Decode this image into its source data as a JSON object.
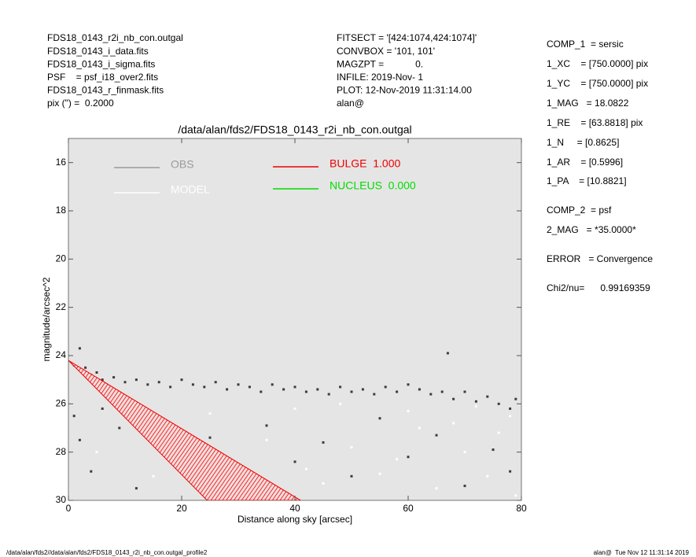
{
  "header": {
    "left": [
      "FDS18_0143_r2i_nb_con.outgal",
      "FDS18_0143_i_data.fits",
      "FDS18_0143_i_sigma.fits",
      "PSF    = psf_i18_over2.fits",
      "FDS18_0143_r_finmask.fits",
      "pix (\") =  0.2000"
    ],
    "middle": [
      "FITSECT = '[424:1074,424:1074]'",
      "CONVBOX = '101, 101'",
      "MAGZPT =            0.",
      "INFILE: 2019-Nov- 1",
      "PLOT: 12-Nov-2019 11:31:14.00",
      "alan@"
    ]
  },
  "params": [
    "COMP_1  = sersic",
    "1_XC    = [750.0000] pix",
    "1_YC    = [750.0000] pix",
    "1_MAG   = 18.0822",
    "1_RE    = [63.8818] pix",
    "1_N     = [0.8625]",
    "1_AR    = [0.5996]",
    "1_PA    = [10.8821]",
    "COMP_2  = psf",
    "2_MAG   = *35.0000*",
    "ERROR   = Convergence",
    "Chi2/nu=      0.99169359"
  ],
  "footer": {
    "left": "/data/alan/fds2//data/alan/fds2/FDS18_0143_r2i_nb_con.outgal_profile2",
    "right": "alan@  Tue Nov 12 11:31:14 2019"
  },
  "chart_data": {
    "type": "scatter",
    "title": "/data/alan/fds2/FDS18_0143_r2i_nb_con.outgal",
    "xlabel": "Distance along sky [arcsec]",
    "ylabel": "magnitude/arcsec^2",
    "xlim": [
      0,
      80
    ],
    "ylim": [
      30,
      15
    ],
    "xticks": [
      0,
      20,
      40,
      60,
      80
    ],
    "yticks": [
      16,
      18,
      20,
      22,
      24,
      26,
      28,
      30
    ],
    "series": [
      {
        "name": "OBS",
        "color": "#3c3c3c",
        "legend_color": "#9a9a9a",
        "x": [
          1,
          2,
          3,
          4,
          5,
          6,
          8,
          10,
          12,
          14,
          16,
          18,
          20,
          22,
          24,
          26,
          28,
          30,
          32,
          34,
          36,
          38,
          40,
          42,
          44,
          46,
          48,
          50,
          52,
          54,
          56,
          58,
          60,
          62,
          64,
          66,
          68,
          70,
          72,
          74,
          76,
          78,
          79,
          1,
          2,
          4,
          6,
          9,
          12,
          15,
          20,
          25,
          30,
          35,
          40,
          45,
          50,
          55,
          60,
          65,
          70,
          75,
          78,
          2,
          67
        ],
        "values": [
          24.4,
          24.6,
          24.5,
          24.8,
          24.7,
          25.0,
          24.9,
          25.1,
          25.0,
          25.2,
          25.1,
          25.3,
          25.0,
          25.2,
          25.3,
          25.1,
          25.4,
          25.2,
          25.3,
          25.5,
          25.2,
          25.4,
          25.3,
          25.5,
          25.4,
          25.6,
          25.3,
          25.5,
          25.4,
          25.6,
          25.3,
          25.5,
          25.2,
          25.4,
          25.6,
          25.5,
          25.8,
          25.5,
          25.9,
          25.7,
          26.0,
          26.2,
          25.8,
          26.5,
          27.5,
          28.8,
          26.2,
          27.0,
          29.5,
          26.8,
          28.1,
          27.4,
          29.2,
          26.9,
          28.4,
          27.6,
          29.0,
          26.6,
          28.2,
          27.3,
          29.4,
          27.9,
          28.8,
          23.7,
          23.9
        ]
      },
      {
        "name": "MODEL",
        "color": "#ffffff",
        "legend_color": "#ffffff",
        "x": [
          5,
          10,
          15,
          20,
          25,
          30,
          33,
          35,
          40,
          42,
          45,
          48,
          50,
          55,
          58,
          60,
          62,
          65,
          68,
          70,
          72,
          74,
          76,
          78,
          79
        ],
        "values": [
          28.0,
          26.5,
          29.0,
          27.2,
          26.4,
          28.5,
          29.6,
          27.5,
          26.2,
          28.7,
          29.3,
          26.0,
          27.8,
          28.9,
          28.3,
          26.3,
          27.0,
          29.5,
          26.8,
          28.0,
          26.1,
          29.0,
          27.2,
          26.5,
          29.8
        ]
      },
      {
        "name": "BULGE  1.000",
        "color": "#ee0000",
        "legend_color": "#ee0000",
        "x": [
          0,
          24.5,
          41
        ],
        "values": [
          24.2,
          30,
          30
        ]
      },
      {
        "name": "NUCLEUS  0.000",
        "color": "#00dd00",
        "legend_color": "#00dd00",
        "x": [],
        "values": []
      }
    ]
  }
}
